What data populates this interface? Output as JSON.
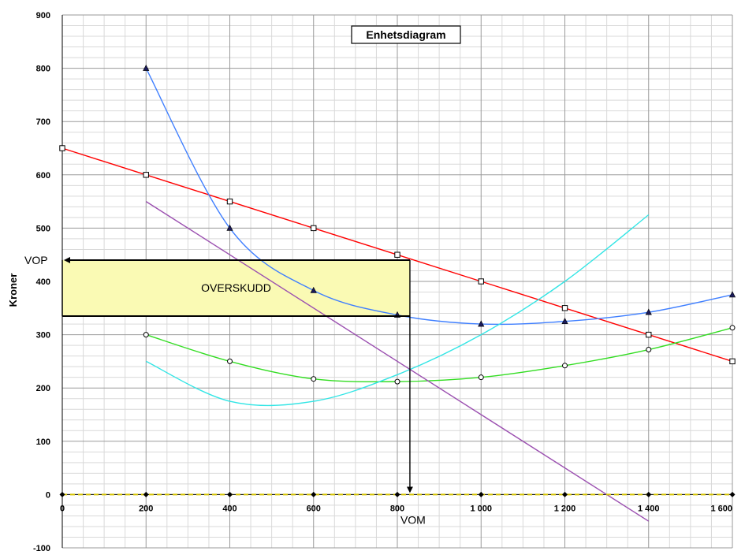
{
  "chart_data": {
    "type": "line",
    "title": "Enhetsdiagram",
    "ylabel": "Kroner",
    "xlabel": "",
    "xlim": [
      0,
      1600
    ],
    "ylim": [
      -100,
      900
    ],
    "x_ticks": [
      0,
      200,
      400,
      600,
      800,
      1000,
      1200,
      1400,
      1600
    ],
    "x_tick_labels": [
      "0",
      "200",
      "400",
      "600",
      "800",
      "1 000",
      "1 200",
      "1 400",
      "1 600"
    ],
    "y_ticks": [
      -100,
      0,
      100,
      200,
      300,
      400,
      500,
      600,
      700,
      800,
      900
    ],
    "y_tick_labels": [
      "-100",
      "0",
      "100",
      "200",
      "300",
      "400",
      "500",
      "600",
      "700",
      "800",
      "900"
    ],
    "grid": true,
    "series": [
      {
        "color": "#ff0000",
        "marker": "square",
        "smooth": false,
        "x": [
          0,
          200,
          400,
          600,
          800,
          1000,
          1200,
          1400,
          1600
        ],
        "y": [
          650,
          600,
          550,
          500,
          450,
          400,
          350,
          300,
          250
        ]
      },
      {
        "color": "#3f7fff",
        "marker": "triangle",
        "smooth": true,
        "x": [
          200,
          400,
          600,
          800,
          1000,
          1200,
          1400,
          1600
        ],
        "y": [
          800,
          500,
          383,
          337,
          320,
          325,
          342,
          375
        ]
      },
      {
        "color": "#33dd22",
        "marker": "circle",
        "smooth": true,
        "x": [
          200,
          400,
          600,
          800,
          1000,
          1200,
          1400,
          1600
        ],
        "y": [
          300,
          250,
          217,
          212,
          220,
          242,
          272,
          313
        ]
      },
      {
        "color": "#33e5e5",
        "marker": "none",
        "smooth": true,
        "x": [
          200,
          400,
          600,
          800,
          1000,
          1200,
          1400
        ],
        "y": [
          250,
          175,
          175,
          225,
          300,
          400,
          525
        ]
      },
      {
        "color": "#9b4fb0",
        "marker": "none",
        "smooth": false,
        "x": [
          200,
          1400
        ],
        "y": [
          550,
          -50
        ]
      },
      {
        "color": "#d4c200",
        "marker": "diamond",
        "smooth": false,
        "dashed": true,
        "x": [
          0,
          200,
          400,
          600,
          800,
          1000,
          1200,
          1400,
          1600
        ],
        "y": [
          0,
          0,
          0,
          0,
          0,
          0,
          0,
          0,
          0
        ]
      }
    ],
    "annotations": {
      "vop": {
        "label": "VOP",
        "y": 440
      },
      "vom": {
        "label": "VOM",
        "x": 830
      },
      "profit_box": {
        "label": "OVERSKUDD",
        "x": [
          0,
          830
        ],
        "y": [
          335,
          440
        ],
        "fill": "#fafab4"
      }
    }
  }
}
